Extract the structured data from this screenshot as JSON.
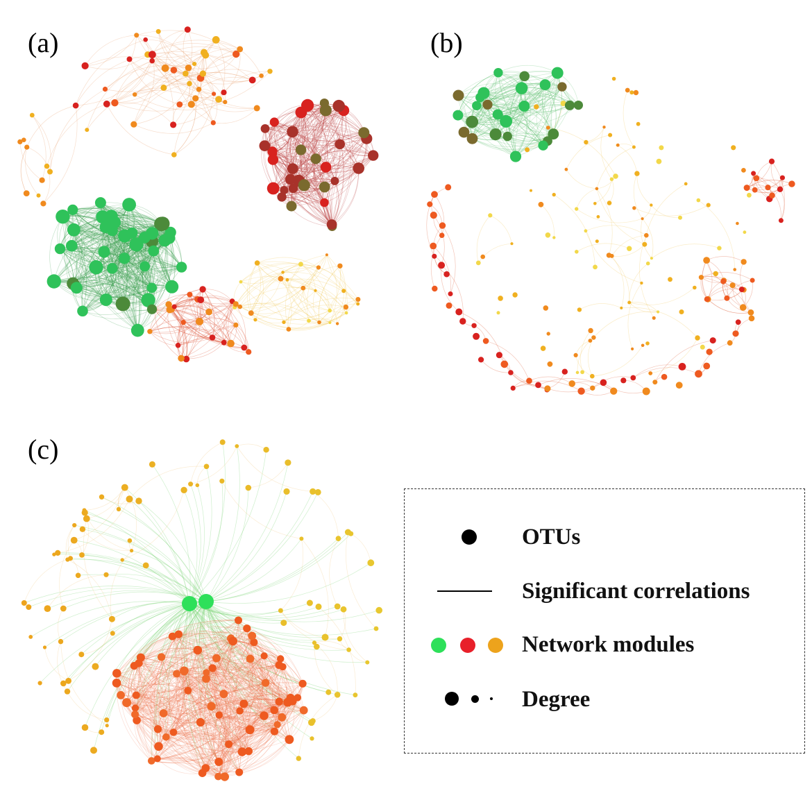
{
  "panels": [
    {
      "id": "a",
      "label": "(a)"
    },
    {
      "id": "b",
      "label": "(b)"
    },
    {
      "id": "c",
      "label": "(c)"
    }
  ],
  "legend": {
    "items": [
      {
        "key": "otus",
        "label": "OTUs",
        "icon": "black-dot-icon"
      },
      {
        "key": "edge",
        "label": "Significant correlations",
        "icon": "black-line-icon"
      },
      {
        "key": "modules",
        "label": "Network modules",
        "icon": "colored-dots-icon"
      },
      {
        "key": "degree",
        "label": "Degree",
        "icon": "size-dots-icon"
      }
    ],
    "module_colors": [
      "#2ee05a",
      "#e8202a",
      "#eda31c"
    ],
    "dot_color": "#000000"
  },
  "palette": {
    "green": "#2fc25a",
    "dark_green": "#4c8a3a",
    "olive": "#7a6a2e",
    "red": "#d8221f",
    "dark_red": "#a8322a",
    "orange_red": "#ee5a20",
    "orange": "#f08a1e",
    "amber": "#f0b020",
    "yellow": "#f2d84a"
  }
}
